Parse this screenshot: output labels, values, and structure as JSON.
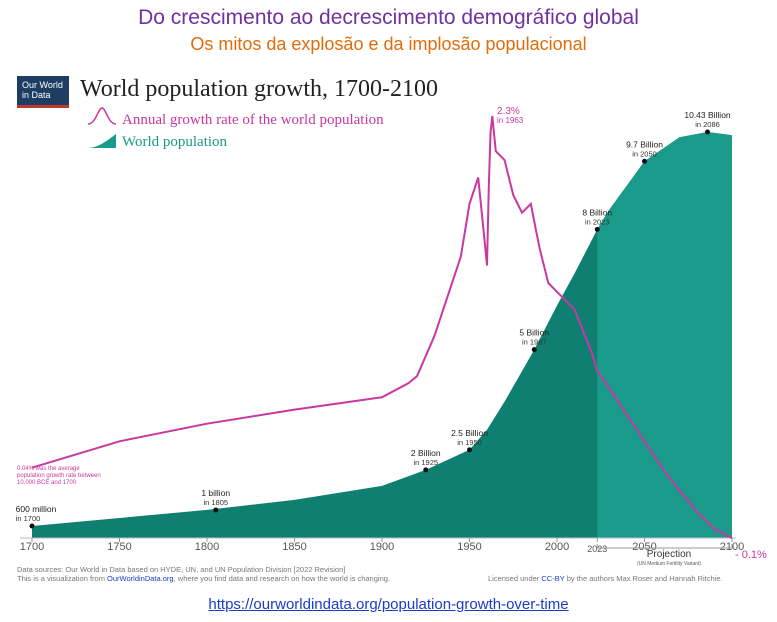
{
  "slide": {
    "title": "Do crescimento ao decrescimento demográfico global",
    "subtitle": "Os mitos da explosão e da implosão populacional",
    "link": "https://ourworldindata.org/population-growth-over-time"
  },
  "logo": {
    "line1": "Our World",
    "line2": "in Data"
  },
  "colors": {
    "population": "#1a9a8a",
    "population_dark": "#0f7f72",
    "growth": "#c838a0",
    "title_purple": "#7030a0",
    "subtitle_orange": "#e36c09"
  },
  "chart_data": {
    "type": "area",
    "title": "World population growth, 1700-2100",
    "legend": [
      {
        "name": "Annual growth rate of the world population",
        "kind": "line"
      },
      {
        "name": "World population",
        "kind": "area"
      }
    ],
    "xlim": [
      1700,
      2100
    ],
    "x_ticks": [
      1700,
      1750,
      1800,
      1850,
      1900,
      1950,
      2000,
      2023,
      2050,
      2100
    ],
    "projection_start": 2023,
    "projection_label": "Projection",
    "projection_sublabel": "(UN Medium Fertility Variant)",
    "population_series": {
      "name": "World population",
      "unit": "billion",
      "x": [
        1700,
        1750,
        1800,
        1850,
        1900,
        1925,
        1950,
        1960,
        1970,
        1987,
        2000,
        2010,
        2023,
        2030,
        2050,
        2070,
        2086,
        2100
      ],
      "values": [
        0.6,
        0.8,
        1.0,
        1.25,
        1.6,
        2.0,
        2.5,
        3.0,
        3.7,
        5.0,
        6.1,
        6.9,
        8.0,
        8.5,
        9.7,
        10.3,
        10.43,
        10.35
      ]
    },
    "growth_series": {
      "name": "Annual growth rate of the world population",
      "unit": "%",
      "x": [
        1700,
        1750,
        1800,
        1850,
        1900,
        1915,
        1920,
        1930,
        1945,
        1950,
        1955,
        1959,
        1960,
        1961,
        1962,
        1963,
        1965,
        1970,
        1975,
        1980,
        1985,
        1990,
        1995,
        2000,
        2010,
        2020,
        2023,
        2030,
        2040,
        2050,
        2060,
        2070,
        2080,
        2090,
        2100
      ],
      "values": [
        0.3,
        0.45,
        0.55,
        0.63,
        0.7,
        0.78,
        0.82,
        1.05,
        1.5,
        1.8,
        1.95,
        1.55,
        1.45,
        1.9,
        2.2,
        2.3,
        2.1,
        2.05,
        1.85,
        1.75,
        1.8,
        1.55,
        1.35,
        1.3,
        1.2,
        0.95,
        0.85,
        0.75,
        0.6,
        0.45,
        0.3,
        0.17,
        0.05,
        -0.05,
        -0.1
      ]
    },
    "annotations": {
      "peak": {
        "value": "2.3%",
        "when": "in 1963"
      },
      "end_growth": "- 0.1%",
      "average_note": "0.04% was the average population growth rate between 10,000 BCE and 1700",
      "milestones": [
        {
          "year": 1700,
          "value": 0.6,
          "label": "600 million",
          "sub": "in 1700"
        },
        {
          "year": 1805,
          "value": 1.0,
          "label": "1 billion",
          "sub": "in 1805"
        },
        {
          "year": 1925,
          "value": 2.0,
          "label": "2 Billion",
          "sub": "in 1925"
        },
        {
          "year": 1950,
          "value": 2.5,
          "label": "2.5 Billion",
          "sub": "in 1950"
        },
        {
          "year": 1987,
          "value": 5.0,
          "label": "5 Billion",
          "sub": "in 1987"
        },
        {
          "year": 2023,
          "value": 8.0,
          "label": "8 Billion",
          "sub": "in 2023"
        },
        {
          "year": 2050,
          "value": 9.7,
          "label": "9.7 Billion",
          "sub": "in 2050"
        },
        {
          "year": 2086,
          "value": 10.43,
          "label": "10.43 Billion",
          "sub": "in 2086"
        }
      ]
    },
    "footer": {
      "sources": "Data sources: Our World in Data based on HYDE, UN, and UN Population Division [2022 Revision]",
      "visualization_pre": "This is a visualization from",
      "visualization_site": "OurWorldinData.org",
      "visualization_post": ", where you find data and research on how the world is changing.",
      "license_pre": "Licensed under",
      "license_name": "CC-BY",
      "license_post": "by the authors Max Roser and Hannah Ritchie."
    }
  }
}
